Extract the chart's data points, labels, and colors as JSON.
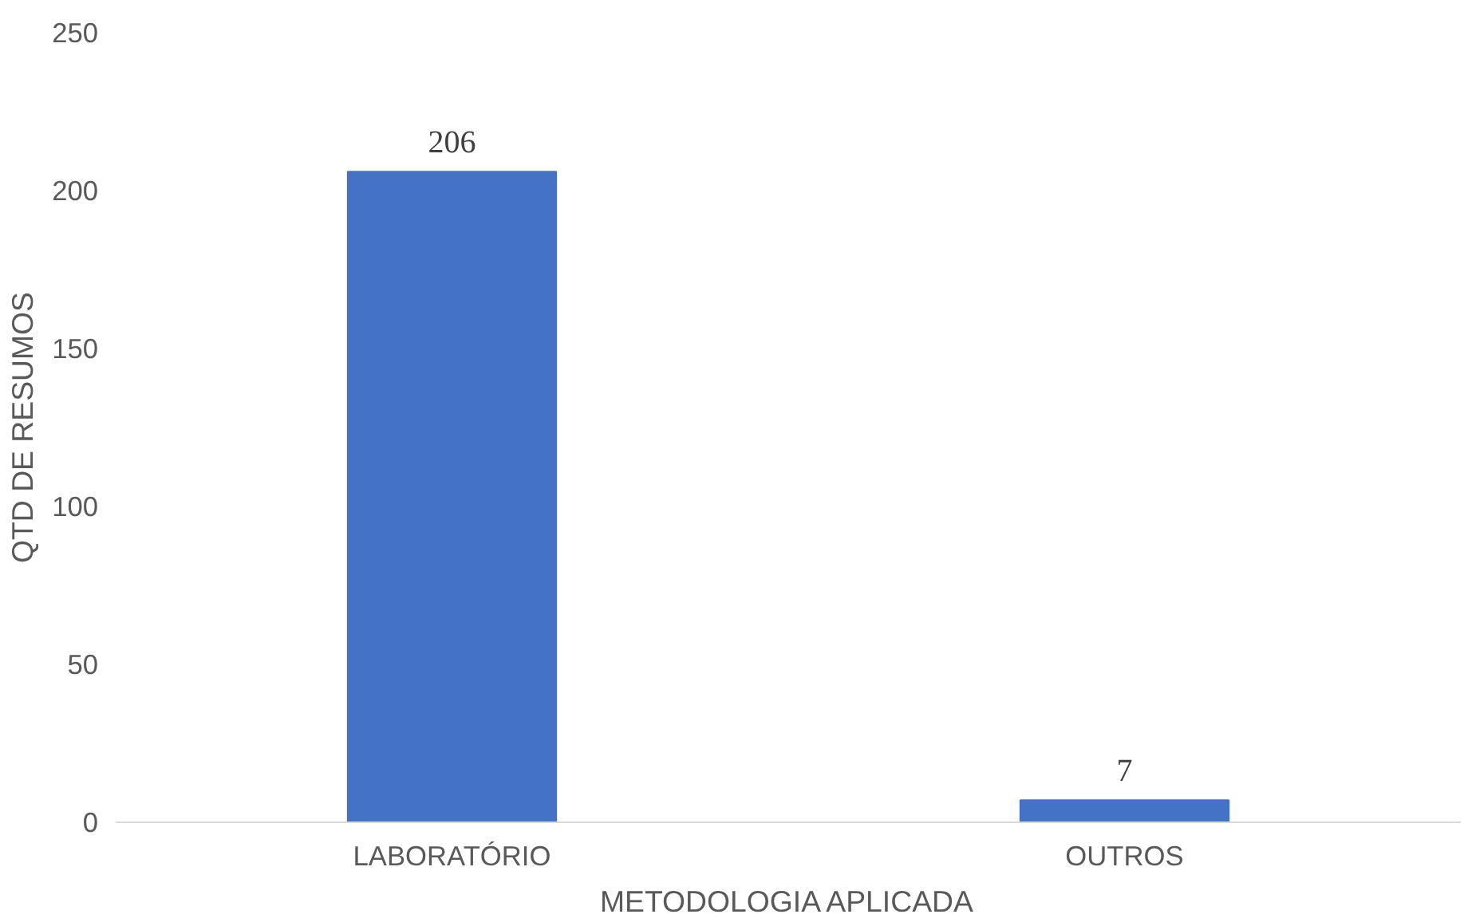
{
  "chart_data": {
    "type": "bar",
    "xlabel": "METODOLOGIA APLICADA",
    "ylabel": "QTD DE RESUMOS",
    "categories": [
      "LABORATÓRIO",
      "OUTROS"
    ],
    "values": [
      206,
      7
    ],
    "color": "#4472c4",
    "ylim": [
      0,
      250
    ],
    "yticks": [
      0,
      50,
      100,
      150,
      200,
      250
    ],
    "grid": false,
    "data_labels": true
  }
}
